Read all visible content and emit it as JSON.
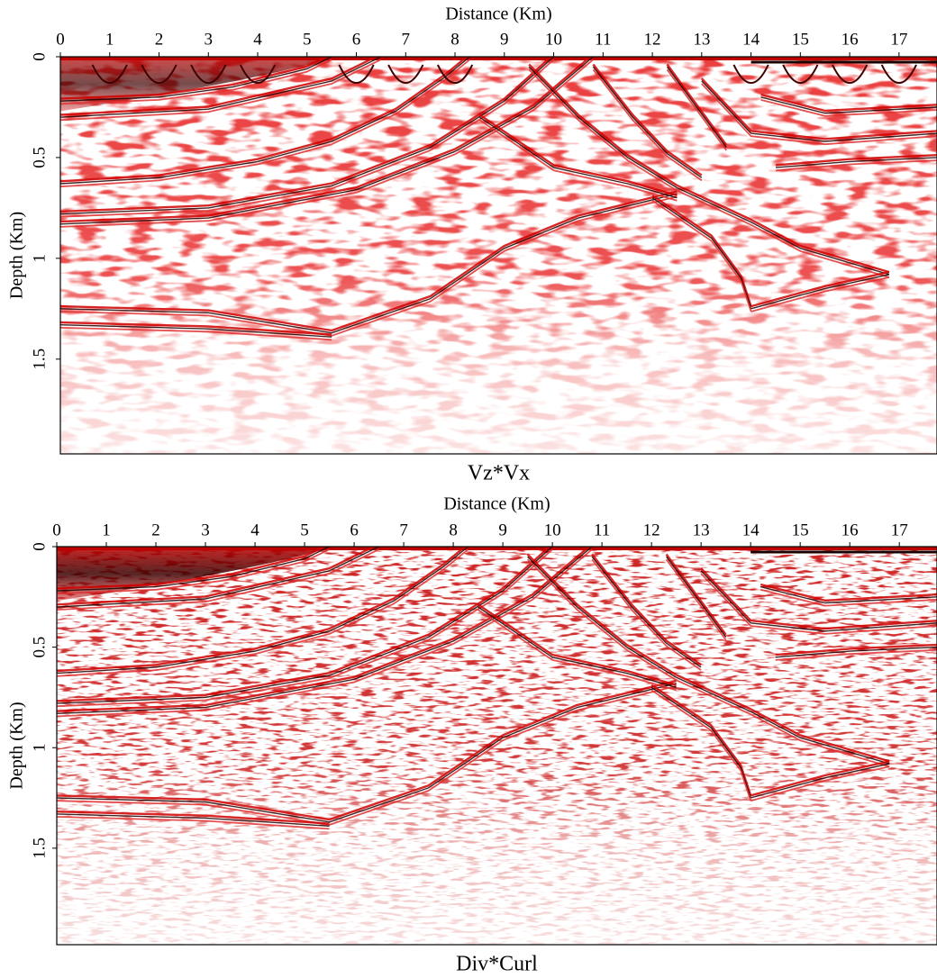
{
  "chart_data": [
    {
      "type": "image",
      "title": "Vz*Vx",
      "xlabel": "Distance (Km)",
      "ylabel": "Depth (Km)",
      "xlim": [
        0,
        17.77
      ],
      "ylim": [
        0,
        1.97
      ],
      "xticks": [
        0,
        1,
        2,
        3,
        4,
        5,
        6,
        7,
        8,
        9,
        10,
        11,
        12,
        13,
        14,
        15,
        16,
        17
      ],
      "yticks": [
        0,
        0.5,
        1,
        1.5
      ]
    },
    {
      "type": "image",
      "title": "Div*Curl",
      "xlabel": "Distance (Km)",
      "ylabel": "Depth (Km)",
      "xlim": [
        0,
        17.76
      ],
      "ylim": [
        0,
        1.98
      ],
      "xticks": [
        0,
        1,
        2,
        3,
        4,
        5,
        6,
        7,
        8,
        9,
        10,
        11,
        12,
        13,
        14,
        15,
        16,
        17
      ],
      "yticks": [
        0,
        0.5,
        1,
        1.5
      ]
    }
  ]
}
